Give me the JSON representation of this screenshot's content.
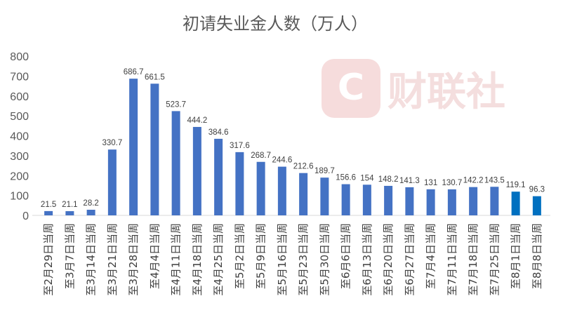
{
  "watermark": {
    "text": "财联社",
    "color": "#f3d3d3"
  },
  "chart_data": {
    "type": "bar",
    "title": "初请失业金人数（万人）",
    "xlabel": "",
    "ylabel": "",
    "ylim": [
      0,
      800
    ],
    "yticks": [
      0,
      100,
      200,
      300,
      400,
      500,
      600,
      700,
      800
    ],
    "ytick_labels": [
      "0",
      "100",
      "200",
      "300",
      "400",
      "500",
      "600",
      "700",
      "800"
    ],
    "grid": false,
    "legend": "none",
    "bar_color": "#4472C4",
    "highlight_color": "#0070C0",
    "highlight_indices": [
      22,
      23
    ],
    "categories": [
      "至2月29日当周",
      "至3月7日当周",
      "至3月14日当周",
      "至3月21日当周",
      "至3月28日当周",
      "至4月4日当周",
      "至4月11日当周",
      "至4月18日当周",
      "至4月25日当周",
      "至5月2日当周",
      "至5月9日当周",
      "至5月16日当周",
      "至5月23日当周",
      "至5月30日当周",
      "至6月6日当周",
      "至6月13日当周",
      "至6月20日当周",
      "至6月27日当周",
      "至7月4日当周",
      "至7月11日当周",
      "至7月18日当周",
      "至7月25日当周",
      "至8月1日当周",
      "至8月8日当周"
    ],
    "values": [
      21.5,
      21.1,
      28.2,
      330.7,
      686.7,
      661.5,
      523.7,
      444.2,
      384.6,
      317.6,
      268.7,
      244.6,
      212.6,
      189.7,
      156.6,
      154,
      148.2,
      141.3,
      131,
      130.7,
      142.2,
      143.5,
      119.1,
      96.3
    ],
    "data_labels": [
      "21.5",
      "21.1",
      "28.2",
      "330.7",
      "686.7",
      "661.5",
      "523.7",
      "444.2",
      "384.6",
      "317.6",
      "268.7",
      "244.6",
      "212.6",
      "189.7",
      "156.6",
      "154",
      "148.2",
      "141.3",
      "131",
      "130.7",
      "142.2",
      "143.5",
      "119.1",
      "96.3"
    ]
  }
}
